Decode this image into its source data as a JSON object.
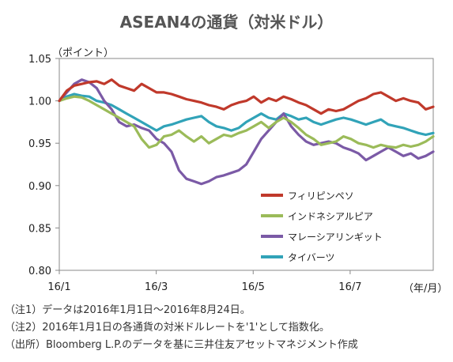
{
  "chart_data": {
    "type": "line",
    "title": "ASEAN4の通貨（対米ドル）",
    "ylabel": "（ポイント）",
    "xlabel": "（年/月）",
    "ylim": [
      0.8,
      1.05
    ],
    "yticks": [
      "1.05",
      "1.00",
      "0.95",
      "0.90",
      "0.85",
      "0.80"
    ],
    "xticks": [
      {
        "label": "16/1",
        "t": 0
      },
      {
        "label": "16/3",
        "t": 0.2593
      },
      {
        "label": "16/5",
        "t": 0.5185
      },
      {
        "label": "16/7",
        "t": 0.7778
      }
    ],
    "legend_position": "lower-right",
    "series": [
      {
        "name": "フィリピンペソ",
        "color": "#c0392b",
        "x": [
          0,
          0.02,
          0.04,
          0.06,
          0.08,
          0.1,
          0.12,
          0.14,
          0.16,
          0.18,
          0.2,
          0.22,
          0.24,
          0.26,
          0.28,
          0.3,
          0.32,
          0.34,
          0.36,
          0.38,
          0.4,
          0.42,
          0.44,
          0.46,
          0.48,
          0.5,
          0.52,
          0.54,
          0.56,
          0.58,
          0.6,
          0.62,
          0.64,
          0.66,
          0.68,
          0.7,
          0.72,
          0.74,
          0.76,
          0.78,
          0.8,
          0.82,
          0.84,
          0.86,
          0.88,
          0.9,
          0.92,
          0.94,
          0.96,
          0.98,
          1.0
        ],
        "values": [
          1.0,
          1.012,
          1.018,
          1.02,
          1.022,
          1.023,
          1.02,
          1.025,
          1.018,
          1.015,
          1.012,
          1.02,
          1.015,
          1.01,
          1.01,
          1.008,
          1.005,
          1.002,
          1.0,
          0.998,
          0.995,
          0.993,
          0.99,
          0.995,
          0.998,
          1.0,
          1.005,
          0.998,
          1.003,
          1.0,
          1.005,
          1.002,
          0.998,
          0.995,
          0.99,
          0.985,
          0.99,
          0.988,
          0.99,
          0.995,
          1.0,
          1.003,
          1.008,
          1.01,
          1.005,
          1.0,
          1.003,
          1.0,
          0.998,
          0.99,
          0.993
        ]
      },
      {
        "name": "インドネシアルピア",
        "color": "#9bbb59",
        "x": [
          0,
          0.02,
          0.04,
          0.06,
          0.08,
          0.1,
          0.12,
          0.14,
          0.16,
          0.18,
          0.2,
          0.22,
          0.24,
          0.26,
          0.28,
          0.3,
          0.32,
          0.34,
          0.36,
          0.38,
          0.4,
          0.42,
          0.44,
          0.46,
          0.48,
          0.5,
          0.52,
          0.54,
          0.56,
          0.58,
          0.6,
          0.62,
          0.64,
          0.66,
          0.68,
          0.7,
          0.72,
          0.74,
          0.76,
          0.78,
          0.8,
          0.82,
          0.84,
          0.86,
          0.88,
          0.9,
          0.92,
          0.94,
          0.96,
          0.98,
          1.0
        ],
        "values": [
          1.0,
          1.003,
          1.005,
          1.004,
          1.0,
          0.995,
          0.99,
          0.985,
          0.98,
          0.975,
          0.97,
          0.955,
          0.945,
          0.948,
          0.958,
          0.96,
          0.965,
          0.958,
          0.952,
          0.958,
          0.95,
          0.955,
          0.96,
          0.958,
          0.962,
          0.965,
          0.97,
          0.975,
          0.968,
          0.975,
          0.98,
          0.975,
          0.968,
          0.96,
          0.955,
          0.948,
          0.95,
          0.952,
          0.958,
          0.955,
          0.95,
          0.948,
          0.945,
          0.948,
          0.946,
          0.945,
          0.948,
          0.946,
          0.948,
          0.952,
          0.958
        ]
      },
      {
        "name": "マレーシアリンギット",
        "color": "#7b5aa6",
        "x": [
          0,
          0.02,
          0.04,
          0.06,
          0.08,
          0.1,
          0.12,
          0.14,
          0.16,
          0.18,
          0.2,
          0.22,
          0.24,
          0.26,
          0.28,
          0.3,
          0.32,
          0.34,
          0.36,
          0.38,
          0.4,
          0.42,
          0.44,
          0.46,
          0.48,
          0.5,
          0.52,
          0.54,
          0.56,
          0.58,
          0.6,
          0.62,
          0.64,
          0.66,
          0.68,
          0.7,
          0.72,
          0.74,
          0.76,
          0.78,
          0.8,
          0.82,
          0.84,
          0.86,
          0.88,
          0.9,
          0.92,
          0.94,
          0.96,
          0.98,
          1.0
        ],
        "values": [
          1.0,
          1.01,
          1.02,
          1.025,
          1.022,
          1.015,
          1.0,
          0.99,
          0.975,
          0.97,
          0.972,
          0.968,
          0.965,
          0.955,
          0.95,
          0.94,
          0.918,
          0.908,
          0.905,
          0.902,
          0.905,
          0.91,
          0.912,
          0.915,
          0.918,
          0.925,
          0.94,
          0.955,
          0.965,
          0.975,
          0.985,
          0.97,
          0.96,
          0.952,
          0.948,
          0.95,
          0.952,
          0.95,
          0.945,
          0.942,
          0.938,
          0.93,
          0.935,
          0.94,
          0.945,
          0.94,
          0.935,
          0.938,
          0.932,
          0.935,
          0.94
        ]
      },
      {
        "name": "タイバーツ",
        "color": "#31a3b8",
        "x": [
          0,
          0.02,
          0.04,
          0.06,
          0.08,
          0.1,
          0.12,
          0.14,
          0.16,
          0.18,
          0.2,
          0.22,
          0.24,
          0.26,
          0.28,
          0.3,
          0.32,
          0.34,
          0.36,
          0.38,
          0.4,
          0.42,
          0.44,
          0.46,
          0.48,
          0.5,
          0.52,
          0.54,
          0.56,
          0.58,
          0.6,
          0.62,
          0.64,
          0.66,
          0.68,
          0.7,
          0.72,
          0.74,
          0.76,
          0.78,
          0.8,
          0.82,
          0.84,
          0.86,
          0.88,
          0.9,
          0.92,
          0.94,
          0.96,
          0.98,
          1.0
        ],
        "values": [
          1.0,
          1.005,
          1.008,
          1.006,
          1.005,
          1.0,
          0.998,
          0.995,
          0.99,
          0.985,
          0.98,
          0.975,
          0.97,
          0.965,
          0.97,
          0.972,
          0.975,
          0.978,
          0.98,
          0.982,
          0.975,
          0.97,
          0.968,
          0.965,
          0.968,
          0.975,
          0.98,
          0.985,
          0.98,
          0.978,
          0.985,
          0.982,
          0.978,
          0.98,
          0.975,
          0.972,
          0.975,
          0.978,
          0.98,
          0.978,
          0.975,
          0.972,
          0.975,
          0.978,
          0.972,
          0.97,
          0.968,
          0.965,
          0.962,
          0.96,
          0.962
        ]
      }
    ]
  },
  "notes": [
    "（注1）データは2016年1月1日～2016年8月24日。",
    "（注2）2016年1月1日の各通貨の対米ドルレートを'1'として指数化。",
    "（出所）Bloomberg L.P.のデータを基に三井住友アセットマネジメント作成"
  ]
}
